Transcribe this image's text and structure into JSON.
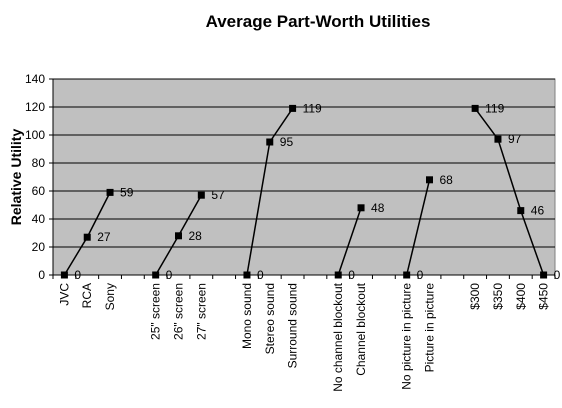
{
  "chart_data": {
    "type": "line",
    "title": "Average Part-Worth Utilities",
    "xlabel": "",
    "ylabel": "Relative Utility",
    "ylim": [
      0,
      140
    ],
    "yticks": [
      0,
      20,
      40,
      60,
      80,
      100,
      120,
      140
    ],
    "grid": true,
    "legend": "none",
    "colors": {
      "plot_background": "#c0c0c0",
      "line": "#000000",
      "marker": "#000000"
    },
    "categories": [
      "JVC",
      "RCA",
      "Sony",
      "",
      "25\" screen",
      "26\" screen",
      "27\" screen",
      "",
      "Mono sound",
      "Stereo sound",
      "Surround sound",
      "",
      "No channel blockout",
      "Channel blockout",
      "",
      "No picture in picture",
      "Picture in picture",
      "",
      "$300",
      "$350",
      "$400",
      "$450"
    ],
    "series": [
      {
        "values": [
          0,
          27,
          59,
          null,
          0,
          28,
          57,
          null,
          0,
          95,
          119,
          null,
          0,
          48,
          null,
          0,
          68,
          null,
          119,
          97,
          46,
          0
        ]
      }
    ]
  }
}
